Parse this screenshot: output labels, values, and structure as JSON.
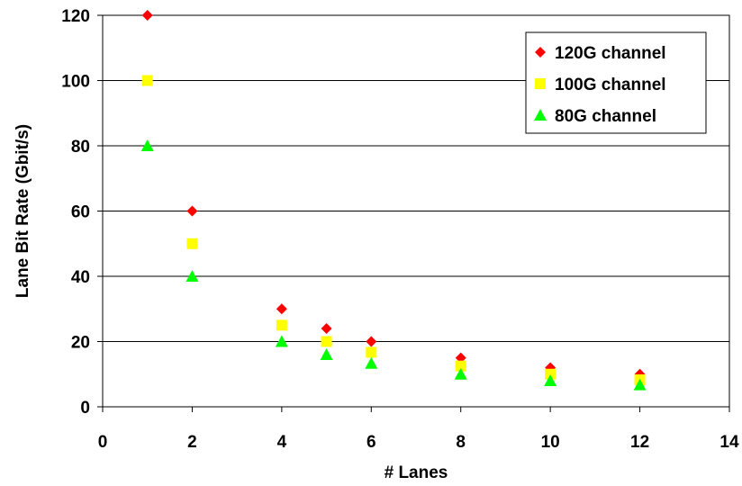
{
  "chart_data": {
    "type": "scatter",
    "title": "",
    "xlabel": "# Lanes",
    "ylabel": "Lane Bit Rate (Gbit/s)",
    "xlim": [
      0,
      14
    ],
    "ylim": [
      0,
      120
    ],
    "x_ticks": [
      "0",
      "2",
      "4",
      "6",
      "8",
      "10",
      "12",
      "14"
    ],
    "y_ticks": [
      "0",
      "20",
      "40",
      "60",
      "80",
      "100",
      "120"
    ],
    "grid": "horizontal",
    "legend_position": "top-right",
    "series": [
      {
        "name": "120G channel",
        "marker": "diamond",
        "color": "#ff0000",
        "points": [
          [
            1,
            120
          ],
          [
            2,
            60
          ],
          [
            4,
            30
          ],
          [
            5,
            24
          ],
          [
            6,
            20
          ],
          [
            8,
            15
          ],
          [
            10,
            12
          ],
          [
            12,
            10
          ]
        ]
      },
      {
        "name": "100G channel",
        "marker": "square",
        "color": "#ffff00",
        "points": [
          [
            1,
            100
          ],
          [
            2,
            50
          ],
          [
            4,
            25
          ],
          [
            5,
            20
          ],
          [
            6,
            16.7
          ],
          [
            8,
            12.5
          ],
          [
            10,
            10
          ],
          [
            12,
            8.3
          ]
        ]
      },
      {
        "name": "80G channel",
        "marker": "triangle",
        "color": "#00ff00",
        "points": [
          [
            1,
            80
          ],
          [
            2,
            40
          ],
          [
            4,
            20
          ],
          [
            5,
            16
          ],
          [
            6,
            13.3
          ],
          [
            8,
            10
          ],
          [
            10,
            8
          ],
          [
            12,
            6.7
          ]
        ]
      }
    ]
  }
}
